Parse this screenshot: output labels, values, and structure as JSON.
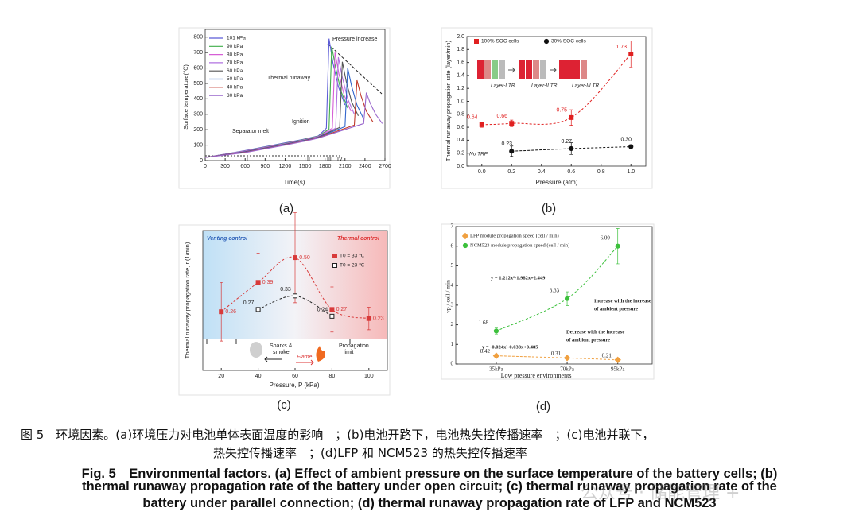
{
  "chart_data": [
    {
      "type": "line",
      "xlabel": "Time(s)",
      "ylabel": "Surface temperature(℃)",
      "xlim": [
        0,
        2700
      ],
      "xticks": [
        0,
        300,
        600,
        900,
        1200,
        1500,
        1800,
        2100,
        2400,
        2700
      ],
      "ylim": [
        0,
        850
      ],
      "yticks": [
        0,
        100,
        200,
        300,
        400,
        500,
        600,
        700,
        800
      ],
      "annotations": [
        "Pressure increase",
        "Thermal runaway",
        "Ignition",
        "Separator melt",
        "I",
        "II",
        "III",
        "IV"
      ],
      "series": [
        {
          "name": "101 kPa",
          "color": "#5b5bd6",
          "x": [
            0,
            600,
            1200,
            1500,
            1700,
            1820,
            1860,
            1920,
            2000,
            2100
          ],
          "values": [
            20,
            65,
            115,
            140,
            160,
            210,
            790,
            630,
            480,
            360
          ]
        },
        {
          "name": "90 kPa",
          "color": "#3fae49",
          "x": [
            0,
            600,
            1200,
            1500,
            1700,
            1860,
            1900,
            1960,
            2040,
            2140
          ],
          "values": [
            20,
            63,
            112,
            138,
            158,
            205,
            740,
            600,
            450,
            340
          ]
        },
        {
          "name": "80 kPa",
          "color": "#d65fd6",
          "x": [
            0,
            600,
            1200,
            1500,
            1700,
            1910,
            1950,
            2010,
            2090,
            2190
          ],
          "values": [
            20,
            62,
            110,
            136,
            156,
            210,
            700,
            560,
            420,
            320
          ]
        },
        {
          "name": "70 kPa",
          "color": "#b070e0",
          "x": [
            0,
            600,
            1200,
            1500,
            1700,
            1960,
            2000,
            2060,
            2140,
            2240
          ],
          "values": [
            20,
            60,
            108,
            134,
            154,
            210,
            670,
            540,
            400,
            300
          ]
        },
        {
          "name": "60 kPa",
          "color": "#555555",
          "x": [
            0,
            600,
            1200,
            1500,
            1700,
            2020,
            2060,
            2120,
            2200,
            2300
          ],
          "values": [
            20,
            58,
            106,
            132,
            152,
            215,
            640,
            510,
            380,
            290
          ]
        },
        {
          "name": "50 kPa",
          "color": "#3366cc",
          "x": [
            0,
            600,
            1200,
            1500,
            1700,
            2100,
            2140,
            2200,
            2280,
            2380
          ],
          "values": [
            20,
            56,
            104,
            130,
            150,
            220,
            600,
            480,
            360,
            270
          ]
        },
        {
          "name": "40 kPa",
          "color": "#c0392b",
          "x": [
            0,
            600,
            1200,
            1500,
            1700,
            2240,
            2280,
            2340,
            2420,
            2520
          ],
          "values": [
            20,
            54,
            102,
            128,
            148,
            230,
            520,
            420,
            320,
            250
          ]
        },
        {
          "name": "30 kPa",
          "color": "#9966cc",
          "x": [
            0,
            600,
            1200,
            1500,
            1700,
            2380,
            2420,
            2480,
            2560,
            2660
          ],
          "values": [
            20,
            52,
            100,
            126,
            146,
            240,
            440,
            370,
            300,
            240
          ]
        }
      ]
    },
    {
      "type": "scatter",
      "xlabel": "Pressure (atm)",
      "ylabel": "Thermal runaway propagation rate (layer/min)",
      "xlim": [
        -0.1,
        1.1
      ],
      "xticks": [
        {
          "value": 0,
          "label": "0.0"
        },
        0.2,
        0.4,
        0.6,
        0.8,
        {
          "value": 1,
          "label": "1.0"
        }
      ],
      "ylim": [
        0,
        2
      ],
      "yticks": [
        {
          "value": 0,
          "label": "0.0"
        },
        0.2,
        0.4,
        0.6,
        0.8,
        {
          "value": 1,
          "label": "1.0"
        },
        1.2,
        1.4,
        1.6,
        1.8,
        {
          "value": 2,
          "label": "2.0"
        }
      ],
      "annotations": [
        "No TRP",
        "Layer-I TR",
        "Layer-II TR",
        "Layer-III TR"
      ],
      "series": [
        {
          "name": "100% SOC cells",
          "color": "#e02020",
          "marker": "square",
          "x": [
            0,
            0.2,
            0.6,
            1
          ],
          "values": [
            0.64,
            0.66,
            0.75,
            1.73
          ],
          "errors": [
            0.04,
            0.05,
            0.12,
            0.2
          ]
        },
        {
          "name": "30% SOC cells",
          "color": "#111111",
          "marker": "circle",
          "x": [
            0.2,
            0.6,
            1
          ],
          "values": [
            0.23,
            0.27,
            0.3
          ],
          "value_labels": [
            "0.23",
            "0.27",
            "0.30"
          ],
          "errors": [
            0.08,
            0.09,
            0.03
          ]
        }
      ]
    },
    {
      "type": "scatter",
      "xlabel": "Pressure, P (kPa)",
      "ylabel": "Thermal runaway propagation rate, r (1/min)",
      "xlim": [
        10,
        110
      ],
      "xticks": [
        20,
        40,
        60,
        80,
        100
      ],
      "ylim": [
        0,
        0.62
      ],
      "annotations": [
        "Venting control",
        "Thermal control",
        "Sparks &",
        "smoke",
        "Flame",
        "Propagation",
        "limit"
      ],
      "series": [
        {
          "name": "T0 = 33 ℃",
          "color": "#d83a3a",
          "marker": "square",
          "x": [
            20,
            40,
            60,
            80,
            100
          ],
          "values": [
            0.26,
            0.39,
            0.5,
            0.27,
            0.23
          ],
          "value_labels": [
            "0.26",
            "0.39",
            "0.50",
            "0.27",
            "0.23"
          ],
          "errors": [
            0.13,
            0.13,
            0.2,
            0.1,
            0.05
          ]
        },
        {
          "name": "T0 = 23 ℃",
          "color": "#222222",
          "marker": "square",
          "open": true,
          "x": [
            40,
            60,
            80
          ],
          "values": [
            0.27,
            0.33,
            0.24
          ]
        }
      ]
    },
    {
      "type": "scatter",
      "xlabel": "Low pressure environments",
      "ylabel": "vp / cell / min",
      "xlim": [
        15,
        112
      ],
      "xticks": [
        {
          "value": 35,
          "label": "35kPa"
        },
        {
          "value": 70,
          "label": "70kPa"
        },
        {
          "value": 95,
          "label": "95kPa"
        }
      ],
      "ylim": [
        0,
        7
      ],
      "yticks": [
        0,
        1,
        2,
        3,
        4,
        5,
        6,
        7
      ],
      "annotations": [
        "y = 1.212x²-1.982x+2.449",
        "Increase with the increase",
        "of ambient pressure",
        "Decrease with the increase",
        "of ambient pressure",
        "y = -0.024x²-0.038x+0.485"
      ],
      "series": [
        {
          "name": "LFP module propagation speed (cell / min)",
          "color": "#f0a040",
          "marker": "diamond",
          "x": [
            35,
            70,
            95
          ],
          "values": [
            0.42,
            0.31,
            0.21
          ],
          "errors": [
            0.06,
            0.06,
            0.06
          ]
        },
        {
          "name": "NCM523 module propagation speed (cell / min)",
          "color": "#3cc03c",
          "marker": "circle",
          "x": [
            35,
            70,
            95
          ],
          "values": [
            1.68,
            3.33,
            6
          ],
          "value_labels": [
            "1.68",
            "3.33",
            "6.00"
          ],
          "errors": [
            0.15,
            0.35,
            0.9
          ]
        }
      ]
    }
  ],
  "panel_labels": [
    "(a)",
    "(b)",
    "(c)",
    "(d)"
  ],
  "caption_zh": [
    "图 5　环境因素。(a)环境压力对电池单体表面温度的影响　；(b)电池开路下，电池热失控传播速率　；(c)电池并联下，",
    "热失控传播速率　；(d)LFP 和 NCM523 的热失控传播速率"
  ],
  "caption_en": [
    "Fig. 5　Environmental factors. (a) Effect of ambient pressure on the surface temperature of the battery cells; (b)",
    "thermal runaway propagation rate of the battery under open circuit; (c) thermal runaway propagation rate of the",
    "battery under parallel connection; (d) thermal runaway propagation rate of LFP and NCM523"
  ],
  "watermark": "公众号 · 储能管理 +"
}
